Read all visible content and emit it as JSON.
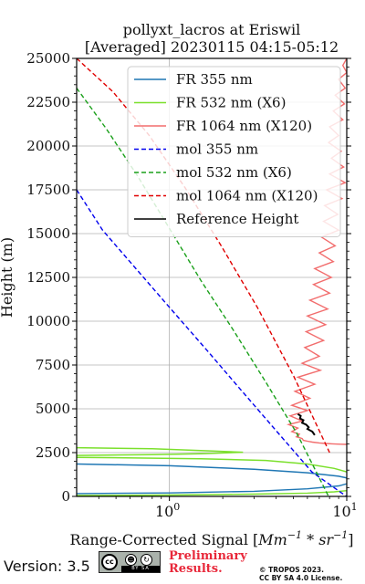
{
  "chart_data": {
    "type": "line",
    "title": "pollyxt_lacros at Eriswil",
    "subtitle": "[Averaged] 20230115 04:15-05:12",
    "xlabel": "Range-Corrected Signal [Mm⁻¹ * sr⁻¹]",
    "xlabel_parts": {
      "main": "Range-Corrected Signal [",
      "unit1": "Mm",
      "exp1": "−1",
      "mid": " * ",
      "unit2": "sr",
      "exp2": "−1",
      "end": "]"
    },
    "ylabel": "Height (m)",
    "x_scale": "log",
    "xlim": [
      0.3,
      10
    ],
    "ylim": [
      0,
      25000
    ],
    "x_ticks": [
      {
        "value": 1,
        "base": "10",
        "exp": "0"
      },
      {
        "value": 10,
        "base": "10",
        "exp": "1"
      }
    ],
    "y_ticks": [
      0,
      2500,
      5000,
      7500,
      10000,
      12500,
      15000,
      17500,
      20000,
      22500,
      25000
    ],
    "y_tick_labels": [
      "0",
      "2500",
      "5000",
      "7500",
      "10000",
      "12500",
      "15000",
      "17500",
      "20000",
      "22500",
      "25000"
    ],
    "grid": true,
    "legend_placement": "upper-right",
    "series": [
      {
        "name": "FR 355 nm",
        "color": "#1f77b4",
        "style": "solid",
        "x": [
          0.3,
          1.0,
          3.0,
          6.0,
          9.0,
          10.0
        ],
        "y": [
          160,
          200,
          290,
          430,
          600,
          720
        ]
      },
      {
        "name": "FR 532 nm (X6)",
        "color": "#7be02c",
        "style": "solid",
        "x": [
          0.3,
          1.0,
          3.0,
          6.0,
          8.5,
          10.0
        ],
        "y": [
          50,
          80,
          130,
          190,
          260,
          330
        ]
      },
      {
        "name": "FR 1064 nm (X120)",
        "color": "#f26d6d",
        "style": "solid",
        "x": [
          10.0,
          9.5,
          10.0,
          9.0,
          9.8,
          8.6,
          9.7,
          8.4,
          9.5,
          8.0,
          9.0,
          7.9,
          9.3,
          8.2,
          9.6,
          8.0,
          9.8,
          7.7,
          9.4,
          7.5,
          8.9,
          7.4,
          9.0,
          7.2,
          8.6,
          7.0,
          8.4,
          6.6,
          8.2,
          6.5,
          8.0,
          6.2,
          7.8,
          6.0,
          7.6,
          5.9,
          7.4,
          5.8,
          7.0,
          5.6,
          7.1,
          5.3,
          6.6,
          5.1,
          6.2,
          4.9,
          6.0,
          4.8,
          5.6,
          4.7,
          5.3,
          4.9,
          5.4,
          5.2,
          5.6,
          5.7,
          6.0,
          6.4,
          7.0,
          7.6,
          8.3,
          9.2,
          10.0
        ],
        "y": [
          25000,
          24600,
          24200,
          23800,
          23300,
          22900,
          22400,
          22000,
          21500,
          21100,
          20600,
          20200,
          19700,
          19300,
          18800,
          18400,
          17900,
          17500,
          17000,
          16600,
          16100,
          15700,
          15200,
          14800,
          14300,
          13900,
          13400,
          13000,
          12500,
          12100,
          11600,
          11200,
          10700,
          10300,
          9800,
          9400,
          8900,
          8500,
          8000,
          7600,
          7200,
          6800,
          6400,
          6000,
          5600,
          5200,
          4900,
          4600,
          4300,
          4100,
          3900,
          3700,
          3550,
          3400,
          3300,
          3200,
          3150,
          3100,
          3050,
          3020,
          3000,
          2980,
          2970
        ]
      },
      {
        "name": "mol 355 nm",
        "color": "#0000ee",
        "style": "dashed",
        "x": [
          0.3,
          0.42,
          0.66,
          1.04,
          1.64,
          2.57,
          4.04,
          6.35,
          9.97
        ],
        "y": [
          17500,
          15200,
          12900,
          10600,
          8300,
          6000,
          3700,
          1400,
          0
        ]
      },
      {
        "name": "mol 532 nm (X6)",
        "color": "#1aa01a",
        "style": "dashed",
        "x": [
          0.3,
          0.44,
          0.66,
          1.0,
          1.51,
          2.29,
          3.46,
          5.23,
          7.9
        ],
        "y": [
          23300,
          21000,
          18300,
          15300,
          12300,
          9500,
          6600,
          3600,
          0
        ]
      },
      {
        "name": "mol 1064 nm (X120)",
        "color": "#e00000",
        "style": "dashed",
        "x": [
          0.3,
          0.48,
          0.77,
          1.23,
          1.96,
          3.13,
          5.0,
          8.0
        ],
        "y": [
          25000,
          23100,
          20600,
          17600,
          14300,
          10800,
          6900,
          2500
        ]
      },
      {
        "name": "Reference Height",
        "color": "#000000",
        "style": "solid",
        "x": [
          5.3,
          5.5,
          5.45,
          5.7,
          5.6,
          5.9,
          6.1,
          6.0,
          6.4,
          6.6
        ],
        "y": [
          4700,
          4600,
          4450,
          4350,
          4200,
          4100,
          3950,
          3850,
          3700,
          3500
        ]
      }
    ],
    "bumps": [
      {
        "color": "#7be02c",
        "x": [
          0.3,
          0.8,
          1.5,
          2.6,
          1.5,
          0.8,
          0.3
        ],
        "y": [
          2780,
          2720,
          2620,
          2520,
          2430,
          2380,
          2340
        ]
      },
      {
        "color": "#7be02c",
        "x": [
          0.3,
          1.5,
          3.5,
          6.0,
          8.5,
          10.0
        ],
        "y": [
          2230,
          2150,
          2050,
          1850,
          1600,
          1400
        ]
      },
      {
        "color": "#1f77b4",
        "x": [
          0.3,
          1.0,
          3.0,
          6.0,
          9.0,
          10.0
        ],
        "y": [
          1850,
          1750,
          1550,
          1350,
          1150,
          1050
        ]
      }
    ]
  },
  "footer": {
    "version": "Version: 3.5",
    "cc_icon": "cc-by-sa-badge",
    "cc_bar_text": "BY  SA",
    "cc_circle_text": "cc",
    "preliminary_line1": "Preliminary",
    "preliminary_line2": "Results.",
    "copyright_line1": "© TROPOS 2023.",
    "copyright_line2": "CC BY SA 4.0 License."
  }
}
